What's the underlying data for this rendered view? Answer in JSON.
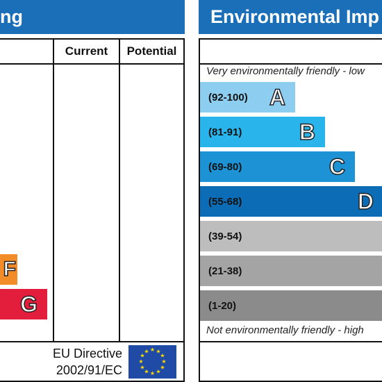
{
  "energy": {
    "header_title": "ng",
    "columns": {
      "current": "Current",
      "potential": "Potential"
    },
    "bands": [
      {
        "letter": "F",
        "color": "#f28c28"
      },
      {
        "letter": "G",
        "color": "#e31d3c"
      }
    ],
    "eu_line1": "EU Directive",
    "eu_line2": "2002/91/EC"
  },
  "environmental": {
    "header_title": "Environmental Imp",
    "top_note": "Very environmentally friendly - low",
    "bottom_note": "Not environmentally friendly - high",
    "bands": [
      {
        "range": "(92-100)",
        "letter": "A",
        "color": "#8dcdf0"
      },
      {
        "range": "(81-91)",
        "letter": "B",
        "color": "#29b5ec"
      },
      {
        "range": "(69-80)",
        "letter": "C",
        "color": "#1d93d6"
      },
      {
        "range": "(55-68)",
        "letter": "D",
        "color": "#0d6cb6"
      },
      {
        "range": "(39-54)",
        "letter": "",
        "color": "#bdbdbd"
      },
      {
        "range": "(21-38)",
        "letter": "",
        "color": "#a4a4a4"
      },
      {
        "range": "(1-20)",
        "letter": "",
        "color": "#8b8b8b"
      }
    ]
  }
}
